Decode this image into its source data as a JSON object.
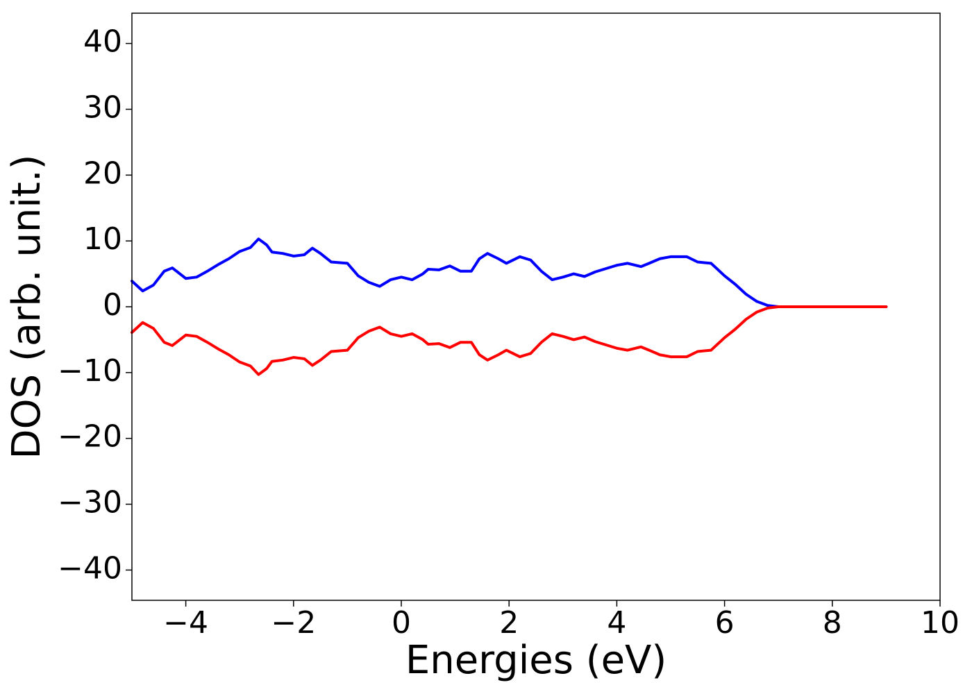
{
  "chart_data": {
    "type": "line",
    "xlabel": "Energies (eV)",
    "ylabel": "DOS (arb. unit.)",
    "x": [
      -5,
      -4.8,
      -4.6,
      -4.4,
      -4.25,
      -4.0,
      -3.8,
      -3.6,
      -3.4,
      -3.2,
      -3.0,
      -2.8,
      -2.65,
      -2.5,
      -2.4,
      -2.2,
      -2.0,
      -1.8,
      -1.65,
      -1.5,
      -1.3,
      -1.0,
      -0.8,
      -0.6,
      -0.4,
      -0.2,
      0,
      0.2,
      0.4,
      0.5,
      0.7,
      0.9,
      1.1,
      1.3,
      1.45,
      1.6,
      1.8,
      1.95,
      2.2,
      2.4,
      2.6,
      2.8,
      3.0,
      3.2,
      3.4,
      3.6,
      3.8,
      4.0,
      4.2,
      4.45,
      4.6,
      4.8,
      5.0,
      5.3,
      5.5,
      5.75,
      6.0,
      6.2,
      6.4,
      6.6,
      6.8,
      7.0,
      8.0,
      9.0
    ],
    "series": [
      {
        "color": "#0000ff",
        "values": [
          3.9,
          2.4,
          3.3,
          5.4,
          5.9,
          4.3,
          4.5,
          5.4,
          6.4,
          7.3,
          8.4,
          9.0,
          10.3,
          9.4,
          8.3,
          8.1,
          7.7,
          7.9,
          8.9,
          8.1,
          6.8,
          6.6,
          4.7,
          3.7,
          3.1,
          4.1,
          4.5,
          4.1,
          5.0,
          5.7,
          5.6,
          6.2,
          5.4,
          5.4,
          7.3,
          8.1,
          7.3,
          6.6,
          7.6,
          7.1,
          5.4,
          4.1,
          4.5,
          5.0,
          4.6,
          5.3,
          5.8,
          6.3,
          6.6,
          6.1,
          6.6,
          7.3,
          7.6,
          7.6,
          6.8,
          6.6,
          4.7,
          3.4,
          1.9,
          0.8,
          0.2,
          0,
          0,
          0
        ]
      },
      {
        "color": "#ff0000",
        "values": [
          -3.9,
          -2.4,
          -3.3,
          -5.4,
          -5.9,
          -4.3,
          -4.5,
          -5.4,
          -6.4,
          -7.3,
          -8.4,
          -9.0,
          -10.3,
          -9.4,
          -8.3,
          -8.1,
          -7.7,
          -7.9,
          -8.9,
          -8.1,
          -6.8,
          -6.6,
          -4.7,
          -3.7,
          -3.1,
          -4.1,
          -4.5,
          -4.1,
          -5.0,
          -5.7,
          -5.6,
          -6.2,
          -5.4,
          -5.4,
          -7.3,
          -8.1,
          -7.3,
          -6.6,
          -7.6,
          -7.1,
          -5.4,
          -4.1,
          -4.5,
          -5.0,
          -4.6,
          -5.3,
          -5.8,
          -6.3,
          -6.6,
          -6.1,
          -6.6,
          -7.3,
          -7.6,
          -7.6,
          -6.8,
          -6.6,
          -4.7,
          -3.4,
          -1.9,
          -0.8,
          -0.2,
          0,
          0,
          0
        ]
      }
    ],
    "xlim": [
      -5,
      10
    ],
    "xticks": [
      {
        "value": -4,
        "label": "−4"
      },
      {
        "value": -2,
        "label": "−2"
      },
      0,
      2,
      4,
      6,
      8,
      10
    ],
    "ylim": [
      -44.6,
      44.6
    ],
    "yticks": [
      {
        "value": -40,
        "label": "−40"
      },
      {
        "value": -30,
        "label": "−30"
      },
      {
        "value": -20,
        "label": "−20"
      },
      {
        "value": -10,
        "label": "−10"
      },
      0,
      10,
      20,
      30,
      40
    ],
    "grid": false
  }
}
